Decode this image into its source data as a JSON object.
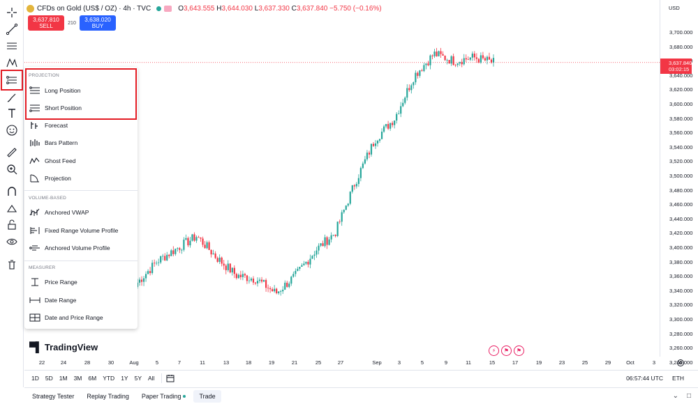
{
  "header": {
    "symbol": "CFDs on Gold (US$ / OZ) · 4h · TVC",
    "ohlc": {
      "o_label": "O",
      "o": "3,643.555",
      "h_label": "H",
      "h": "3,644.030",
      "l_label": "L",
      "l": "3,637.330",
      "c_label": "C",
      "c": "3,637.840",
      "change": "−5.750 (−0.16%)"
    }
  },
  "trade": {
    "sell_price": "3,637.810",
    "sell_label": "SELL",
    "spread": "210",
    "buy_price": "3,638.020",
    "buy_label": "BUY"
  },
  "price_axis": {
    "currency": "USD",
    "ticks": [
      "3,700.000",
      "3,680.000",
      "3,660.000",
      "3,640.000",
      "3,620.000",
      "3,600.000",
      "3,580.000",
      "3,560.000",
      "3,540.000",
      "3,520.000",
      "3,500.000",
      "3,480.000",
      "3,460.000",
      "3,440.000",
      "3,420.000",
      "3,400.000",
      "3,380.000",
      "3,360.000",
      "3,340.000",
      "3,320.000",
      "3,300.000",
      "3,280.000",
      "3,260.000",
      "3,240.000"
    ],
    "last_price": "3,637.840",
    "countdown": "03:02:15"
  },
  "time_axis": {
    "ticks": [
      "22",
      "24",
      "28",
      "30",
      "Aug",
      "5",
      "7",
      "11",
      "13",
      "18",
      "19",
      "21",
      "25",
      "27",
      "Sep",
      "3",
      "5",
      "9",
      "11",
      "15",
      "17",
      "19",
      "23",
      "25",
      "29",
      "Oct",
      "3"
    ]
  },
  "range_bar": {
    "ranges": [
      "1D",
      "5D",
      "1M",
      "3M",
      "6M",
      "YTD",
      "1Y",
      "5Y",
      "All"
    ],
    "clock": "06:57:44 UTC",
    "session": "ETH"
  },
  "bottom_panel": {
    "tabs": [
      "Strategy Tester",
      "Replay Trading",
      "Paper Trading",
      "Trade"
    ]
  },
  "brand": {
    "name": "TradingView"
  },
  "dropdown": {
    "sections": [
      {
        "title": "PROJECTION",
        "items": [
          "Long Position",
          "Short Position",
          "Forecast",
          "Bars Pattern",
          "Ghost Feed",
          "Projection"
        ]
      },
      {
        "title": "VOLUME-BASED",
        "items": [
          "Anchored VWAP",
          "Fixed Range Volume Profile",
          "Anchored Volume Profile"
        ]
      },
      {
        "title": "MEASURER",
        "items": [
          "Price Range",
          "Date Range",
          "Date and Price Range"
        ]
      }
    ]
  },
  "colors": {
    "up": "#26a69a",
    "down": "#f23645",
    "accent": "#2962ff",
    "highlight": "#e31b23"
  },
  "chart_data": {
    "type": "candlestick",
    "series_name": "CFDs on Gold (US$ / OZ)",
    "ylim": [
      3240,
      3700
    ],
    "x_range": [
      "Jul 22",
      "Oct 3"
    ],
    "points": [
      {
        "t": "Jul 29",
        "close": 3330
      },
      {
        "t": "Aug 1",
        "close": 3360
      },
      {
        "t": "Aug 4",
        "close": 3378
      },
      {
        "t": "Aug 8",
        "close": 3395
      },
      {
        "t": "Aug 11",
        "close": 3365
      },
      {
        "t": "Aug 14",
        "close": 3340
      },
      {
        "t": "Aug 18",
        "close": 3335
      },
      {
        "t": "Aug 20",
        "close": 3315
      },
      {
        "t": "Aug 22",
        "close": 3340
      },
      {
        "t": "Aug 25",
        "close": 3375
      },
      {
        "t": "Aug 28",
        "close": 3400
      },
      {
        "t": "Sep 1",
        "close": 3470
      },
      {
        "t": "Sep 3",
        "close": 3530
      },
      {
        "t": "Sep 5",
        "close": 3560
      },
      {
        "t": "Sep 8",
        "close": 3620
      },
      {
        "t": "Sep 9",
        "close": 3650
      },
      {
        "t": "Sep 10",
        "close": 3640
      },
      {
        "t": "Sep 12",
        "close": 3645
      },
      {
        "t": "Sep 15",
        "close": 3637.84
      }
    ]
  }
}
